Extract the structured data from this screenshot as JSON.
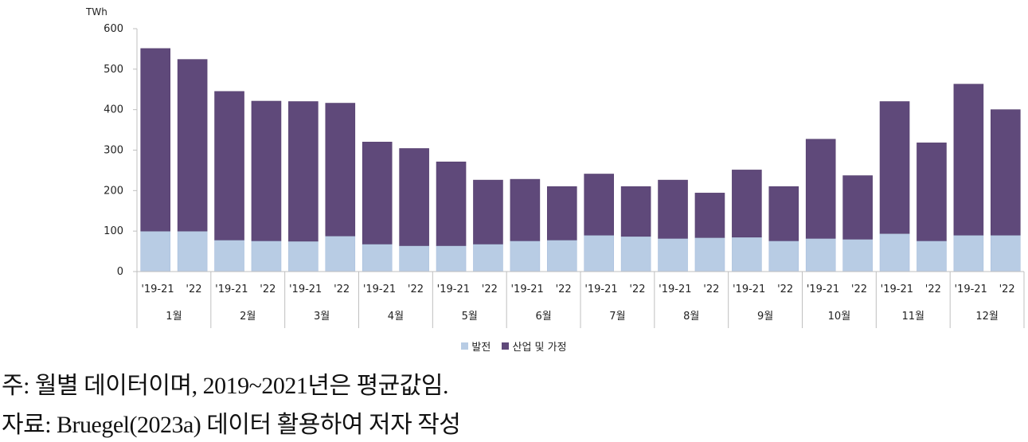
{
  "chart_data": {
    "type": "bar",
    "stacked": true,
    "title": "",
    "ylabel": "TWh",
    "xlabel": "",
    "ylim": [
      0,
      600
    ],
    "yticks": [
      0,
      100,
      200,
      300,
      400,
      500,
      600
    ],
    "grid": false,
    "legend_position": "bottom",
    "month_labels": [
      "1월",
      "2월",
      "3월",
      "4월",
      "5월",
      "6월",
      "7월",
      "8월",
      "9월",
      "10월",
      "11월",
      "12월"
    ],
    "period_labels": [
      "'19-21",
      "'22"
    ],
    "categories": [
      "1월 '19-21",
      "1월 '22",
      "2월 '19-21",
      "2월 '22",
      "3월 '19-21",
      "3월 '22",
      "4월 '19-21",
      "4월 '22",
      "5월 '19-21",
      "5월 '22",
      "6월 '19-21",
      "6월 '22",
      "7월 '19-21",
      "7월 '22",
      "8월 '19-21",
      "8월 '22",
      "9월 '19-21",
      "9월 '22",
      "10월 '19-21",
      "10월 '22",
      "11월 '19-21",
      "11월 '22",
      "12월 '19-21",
      "12월 '22"
    ],
    "series": [
      {
        "name": "발전",
        "color": "#b8cce4",
        "values": [
          100,
          100,
          78,
          76,
          75,
          88,
          68,
          64,
          64,
          68,
          76,
          78,
          90,
          87,
          82,
          84,
          85,
          76,
          82,
          80,
          94,
          76,
          90,
          90
        ]
      },
      {
        "name": "산업 및 가정",
        "color": "#5f497a",
        "values": [
          451,
          424,
          367,
          345,
          345,
          328,
          252,
          240,
          207,
          158,
          152,
          132,
          151,
          123,
          144,
          110,
          166,
          134,
          245,
          157,
          326,
          242,
          373,
          310
        ]
      }
    ],
    "totals": [
      551,
      524,
      445,
      421,
      420,
      416,
      320,
      304,
      271,
      226,
      228,
      210,
      241,
      210,
      226,
      194,
      251,
      210,
      327,
      237,
      420,
      318,
      463,
      400
    ]
  },
  "notes": {
    "note": "주: 월별 데이터이며, 2019~2021년은 평균값임.",
    "source": "자료: Bruegel(2023a) 데이터 활용하여 저자 작성"
  }
}
